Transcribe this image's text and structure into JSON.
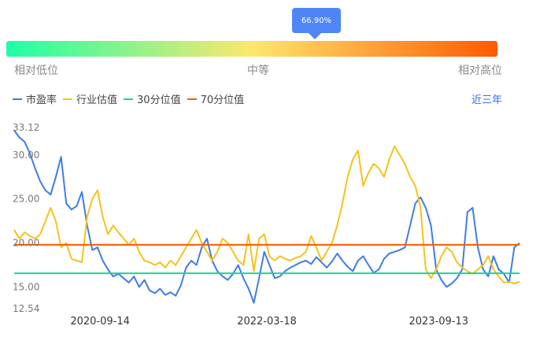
{
  "indicator": {
    "tooltip": "66.90%",
    "percentile": 0.669,
    "low_label": "相对低位",
    "mid_label": "中等",
    "high_label": "相对高位",
    "gradient_colors": [
      "#1dffa6",
      "#fde76e",
      "#ff5a00"
    ]
  },
  "legend": {
    "pe": "市盈率",
    "industry": "行业估值",
    "p30": "30分位值",
    "p70": "70分位值",
    "period": "近三年"
  },
  "chart_data": {
    "type": "line",
    "ylim": [
      12.54,
      33.12
    ],
    "y_ticks": [
      "33.12",
      "30.00",
      "25.00",
      "20.00",
      "15.00",
      "12.54"
    ],
    "y_tick_values": [
      33.12,
      30.0,
      25.0,
      20.0,
      15.0,
      12.54
    ],
    "x_tick_labels": [
      "2020-09-14",
      "2022-03-18",
      "2023-09-13"
    ],
    "x_tick_index": [
      0.17,
      0.5,
      0.84
    ],
    "series": [
      {
        "name": "市盈率",
        "color": "#3f7ce8",
        "values": [
          32.8,
          32.0,
          31.5,
          30.2,
          28.5,
          27.0,
          26.0,
          25.5,
          27.5,
          29.8,
          24.5,
          23.8,
          24.2,
          25.8,
          22.0,
          19.2,
          19.5,
          18.0,
          17.0,
          16.2,
          16.5,
          16.0,
          15.5,
          16.2,
          15.0,
          15.8,
          14.6,
          14.3,
          14.8,
          14.1,
          14.4,
          14.0,
          15.2,
          17.2,
          18.0,
          17.5,
          19.5,
          20.5,
          18.0,
          16.8,
          16.2,
          15.8,
          16.5,
          17.5,
          16.0,
          14.8,
          13.2,
          16.0,
          19.0,
          17.5,
          16.0,
          16.2,
          16.8,
          17.2,
          17.5,
          17.8,
          18.0,
          17.6,
          18.4,
          17.8,
          17.2,
          17.9,
          18.8,
          18.0,
          17.3,
          16.8,
          18.0,
          18.5,
          17.5,
          16.6,
          17.0,
          18.2,
          18.8,
          19.0,
          19.2,
          19.5,
          22.0,
          24.5,
          25.2,
          24.0,
          22.0,
          17.0,
          15.8,
          15.0,
          15.4,
          16.0,
          17.0,
          23.5,
          24.0,
          19.5,
          17.0,
          16.2,
          18.5,
          17.0,
          16.5,
          15.5,
          19.5,
          20.0
        ]
      },
      {
        "name": "行业估值",
        "color": "#f5c21a",
        "values": [
          21.5,
          20.5,
          21.2,
          20.8,
          20.5,
          21.0,
          22.5,
          24.0,
          22.5,
          19.5,
          20.0,
          18.2,
          18.0,
          17.8,
          23.0,
          25.0,
          26.0,
          23.0,
          21.0,
          22.0,
          21.2,
          20.5,
          19.8,
          20.5,
          19.0,
          18.0,
          17.8,
          17.5,
          17.8,
          17.2,
          18.0,
          17.5,
          18.5,
          19.5,
          20.5,
          21.5,
          20.0,
          19.0,
          18.0,
          19.0,
          20.5,
          20.0,
          19.0,
          18.0,
          17.5,
          21.0,
          16.8,
          20.5,
          21.0,
          18.5,
          18.0,
          18.5,
          18.2,
          18.0,
          18.3,
          18.5,
          19.0,
          20.8,
          19.5,
          18.0,
          19.0,
          20.0,
          22.0,
          24.5,
          27.5,
          29.5,
          30.5,
          26.5,
          28.0,
          29.0,
          28.5,
          27.5,
          29.5,
          31.0,
          30.0,
          29.0,
          27.5,
          26.5,
          24.0,
          17.0,
          16.0,
          17.0,
          18.5,
          19.5,
          19.0,
          17.8,
          17.2,
          16.8,
          16.5,
          17.0,
          17.5,
          18.5,
          17.0,
          16.2,
          15.5,
          15.6,
          15.4,
          15.6
        ]
      },
      {
        "name": "30分位值",
        "color": "#1cd495",
        "constant": 16.55
      },
      {
        "name": "70分位值",
        "color": "#ff5a00",
        "constant": 19.8
      }
    ]
  }
}
